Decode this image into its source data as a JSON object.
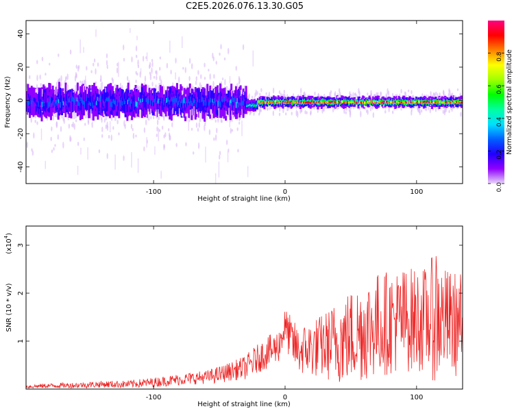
{
  "title": "C2E5.2026.076.13.30.G05",
  "chart_data": [
    {
      "type": "heatmap",
      "xlabel": "Height of straight line (km)",
      "ylabel": "Frequency (Hz)",
      "xlim": [
        -197,
        135
      ],
      "ylim": [
        -50,
        48
      ],
      "x_ticks": [
        -100,
        0,
        100
      ],
      "x_tick_labels": [
        "-100",
        "0",
        "100"
      ],
      "y_ticks": [
        -40,
        -20,
        0,
        20,
        40
      ],
      "y_tick_labels": [
        "-40",
        "-20",
        "0",
        "20",
        "40"
      ],
      "colorbar": {
        "label": "Normalized spectral amplitude",
        "range": [
          0,
          1
        ],
        "ticks": [
          0.0,
          0.2,
          0.4,
          0.6,
          0.8
        ],
        "tick_labels": [
          "0.0",
          "0.2",
          "0.4",
          "0.6",
          "0.8"
        ],
        "colormap": [
          "#e8d8f8",
          "#9000ff",
          "#2000ff",
          "#0060ff",
          "#00e0ff",
          "#00ffa0",
          "#00ff00",
          "#a0ff00",
          "#ffff00",
          "#ff8000",
          "#ff0000",
          "#ff0080"
        ]
      },
      "ridge": [
        {
          "x_from": -197,
          "x_to": -30,
          "center_hz": -1,
          "spread_hz": 8,
          "peak_amplitude": 0.3
        },
        {
          "x_from": -30,
          "x_to": -22,
          "center_hz": -3,
          "spread_hz": 3,
          "peak_amplitude": 0.5
        },
        {
          "x_from": -22,
          "x_to": 135,
          "center_hz": -1,
          "spread_hz": 3,
          "peak_amplitude": 0.9
        }
      ]
    },
    {
      "type": "line",
      "xlabel": "Height of straight line (km)",
      "ylabel": "SNR (10 * v/v)",
      "ylabel_scale": "(x10",
      "ylabel_scale_exp": "4",
      "ylabel_scale_close": ")",
      "xlim": [
        -197,
        135
      ],
      "ylim": [
        0,
        3.4
      ],
      "x_ticks": [
        -100,
        0,
        100
      ],
      "x_tick_labels": [
        "-100",
        "0",
        "100"
      ],
      "y_ticks": [
        1,
        2,
        3
      ],
      "y_tick_labels": [
        "1",
        "2",
        "3"
      ],
      "color": "#ee2222",
      "series": [
        {
          "name": "SNR",
          "x": [
            -197,
            -180,
            -160,
            -140,
            -120,
            -100,
            -80,
            -60,
            -50,
            -40,
            -30,
            -25,
            -20,
            -15,
            -10,
            -5,
            -2,
            0,
            5,
            10,
            20,
            30,
            40,
            50,
            60,
            70,
            80,
            90,
            100,
            110,
            115,
            120,
            130,
            135
          ],
          "y": [
            0.05,
            0.07,
            0.08,
            0.1,
            0.1,
            0.14,
            0.2,
            0.25,
            0.3,
            0.38,
            0.45,
            0.55,
            0.65,
            0.75,
            0.8,
            0.9,
            1.15,
            1.3,
            1.0,
            0.8,
            0.85,
            0.9,
            1.0,
            1.1,
            1.25,
            1.35,
            1.4,
            1.45,
            1.45,
            1.45,
            1.6,
            1.45,
            1.35,
            1.35
          ],
          "noise_amplitude": [
            0.04,
            0.05,
            0.06,
            0.07,
            0.08,
            0.1,
            0.12,
            0.14,
            0.18,
            0.2,
            0.25,
            0.3,
            0.3,
            0.35,
            0.35,
            0.35,
            0.4,
            0.4,
            0.5,
            0.5,
            0.6,
            0.7,
            0.9,
            1.0,
            1.1,
            1.1,
            1.1,
            1.1,
            1.1,
            1.1,
            1.6,
            1.1,
            1.1,
            1.1
          ]
        }
      ]
    }
  ]
}
